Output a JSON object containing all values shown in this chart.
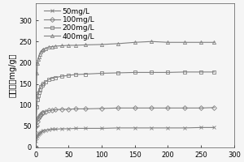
{
  "title": "",
  "xlabel": "",
  "ylabel": "吸附量（mg/g）",
  "xlim": [
    0,
    300
  ],
  "ylim": [
    0,
    340
  ],
  "yticks": [
    0,
    50,
    100,
    150,
    200,
    250,
    300
  ],
  "xticks": [
    0,
    50,
    100,
    150,
    200,
    250,
    300
  ],
  "series": [
    {
      "label": "50mg/L",
      "marker": "x",
      "color": "#808080",
      "x": [
        0,
        1,
        2,
        3,
        4,
        5,
        6,
        8,
        10,
        12,
        15,
        20,
        25,
        30,
        40,
        50,
        60,
        75,
        100,
        125,
        150,
        175,
        200,
        225,
        250,
        270
      ],
      "y": [
        0,
        15,
        22,
        27,
        30,
        33,
        35,
        37,
        39,
        40,
        41,
        42,
        43,
        43,
        44,
        44,
        45,
        45,
        45,
        46,
        46,
        46,
        46,
        46,
        47,
        47
      ]
    },
    {
      "label": "100mg/L",
      "marker": "D",
      "color": "#808080",
      "x": [
        0,
        1,
        2,
        3,
        4,
        5,
        6,
        8,
        10,
        12,
        15,
        20,
        25,
        30,
        40,
        50,
        60,
        75,
        100,
        125,
        150,
        175,
        200,
        225,
        250,
        270
      ],
      "y": [
        0,
        35,
        52,
        62,
        68,
        72,
        75,
        79,
        82,
        83,
        85,
        87,
        88,
        89,
        90,
        90,
        91,
        91,
        92,
        93,
        93,
        93,
        93,
        93,
        93,
        94
      ]
    },
    {
      "label": "200mg/L",
      "marker": "s",
      "color": "#808080",
      "x": [
        0,
        1,
        2,
        3,
        4,
        5,
        6,
        8,
        10,
        12,
        15,
        20,
        25,
        30,
        40,
        50,
        60,
        75,
        100,
        125,
        150,
        175,
        200,
        225,
        250,
        270
      ],
      "y": [
        0,
        65,
        95,
        112,
        122,
        130,
        136,
        143,
        148,
        151,
        155,
        160,
        163,
        165,
        168,
        170,
        172,
        173,
        175,
        176,
        177,
        177,
        177,
        178,
        178,
        178
      ]
    },
    {
      "label": "400mg/L",
      "marker": "^",
      "color": "#808080",
      "x": [
        0,
        1,
        2,
        3,
        4,
        5,
        6,
        8,
        10,
        12,
        15,
        20,
        25,
        30,
        40,
        50,
        60,
        75,
        100,
        125,
        150,
        175,
        200,
        225,
        250,
        270
      ],
      "y": [
        0,
        130,
        175,
        198,
        208,
        215,
        220,
        226,
        230,
        232,
        234,
        237,
        238,
        239,
        240,
        241,
        241,
        242,
        243,
        245,
        248,
        250,
        248,
        248,
        248,
        248
      ]
    }
  ],
  "background_color": "#f5f5f5",
  "legend_fontsize": 6.5,
  "axis_fontsize": 7,
  "tick_fontsize": 6,
  "linewidth": 0.8,
  "markersize": 3.0
}
